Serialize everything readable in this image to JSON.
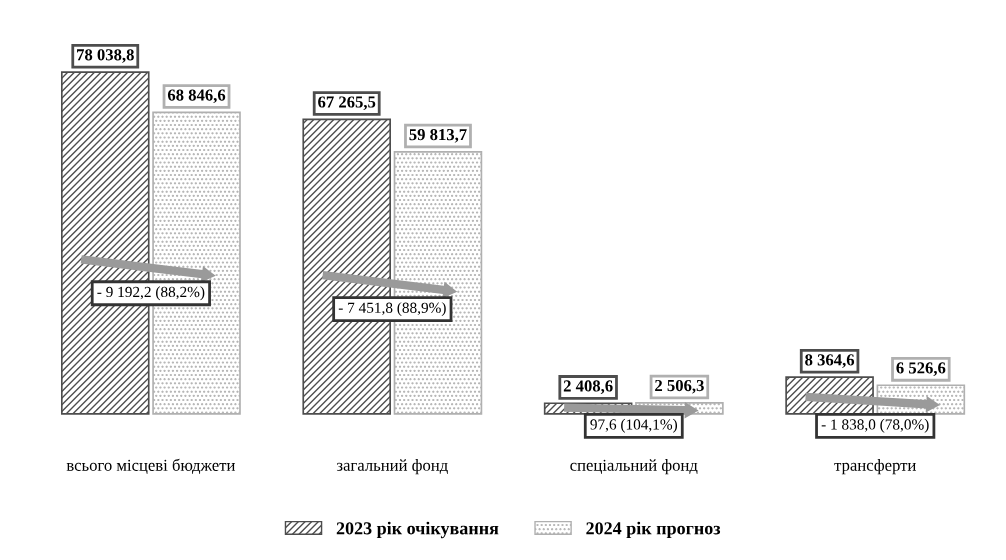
{
  "chart_data": {
    "type": "bar",
    "categories": [
      "всього місцеві бюджети",
      "загальний фонд",
      "спеціальний фонд",
      "трансферти"
    ],
    "series": [
      {
        "name": "2023 рік очікування",
        "color": "#4d4d4d",
        "values": [
          78038.8,
          67265.5,
          2408.6,
          8364.6
        ],
        "value_labels": [
          "78 038,8",
          "67 265,5",
          "2 408,6",
          "8 364,6"
        ]
      },
      {
        "name": "2024 рік прогноз",
        "color": "#b0b0b0",
        "values": [
          68846.6,
          59813.7,
          2506.3,
          6526.6
        ],
        "value_labels": [
          "68 846,6",
          "59 813,7",
          "2 506,3",
          "6 526,6"
        ]
      }
    ],
    "annotations": [
      "- 9 192,2 (88,2%)",
      "- 7 451,8 (88,9%)",
      "97,6 (104,1%)",
      "- 1 838,0 (78,0%)"
    ],
    "legend": "bottom",
    "grid": false
  }
}
